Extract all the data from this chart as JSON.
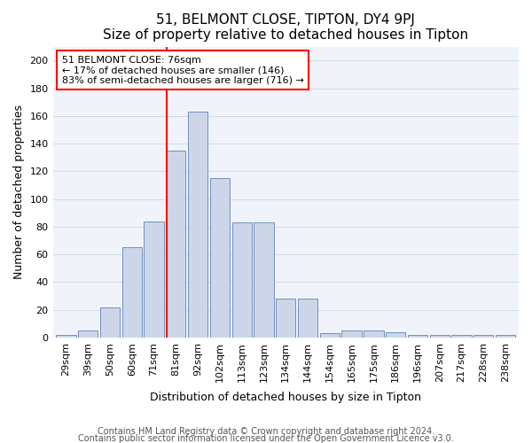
{
  "title": "51, BELMONT CLOSE, TIPTON, DY4 9PJ",
  "subtitle": "Size of property relative to detached houses in Tipton",
  "xlabel": "Distribution of detached houses by size in Tipton",
  "ylabel": "Number of detached properties",
  "bar_labels": [
    "29sqm",
    "39sqm",
    "50sqm",
    "60sqm",
    "71sqm",
    "81sqm",
    "92sqm",
    "102sqm",
    "113sqm",
    "123sqm",
    "134sqm",
    "144sqm",
    "154sqm",
    "165sqm",
    "175sqm",
    "186sqm",
    "196sqm",
    "207sqm",
    "217sqm",
    "228sqm",
    "238sqm"
  ],
  "bar_heights": [
    2,
    5,
    22,
    65,
    84,
    135,
    163,
    115,
    83,
    83,
    28,
    28,
    3,
    5,
    5,
    4,
    2,
    2,
    2,
    2,
    2
  ],
  "bar_color": "#ccd6e8",
  "bar_edge_color": "#7090be",
  "property_line_x": 4.57,
  "property_sqm": 76,
  "annotation_line1": "51 BELMONT CLOSE: 76sqm",
  "annotation_line2": "← 17% of detached houses are smaller (146)",
  "annotation_line3": "83% of semi-detached houses are larger (716) →",
  "annotation_box_color": "white",
  "annotation_box_edge": "red",
  "line_color": "red",
  "ylim": [
    0,
    210
  ],
  "yticks": [
    0,
    20,
    40,
    60,
    80,
    100,
    120,
    140,
    160,
    180,
    200
  ],
  "footer1": "Contains HM Land Registry data © Crown copyright and database right 2024.",
  "footer2": "Contains public sector information licensed under the Open Government Licence v3.0.",
  "title_fontsize": 11,
  "subtitle_fontsize": 9.5,
  "label_fontsize": 9,
  "tick_fontsize": 8,
  "footer_fontsize": 7
}
